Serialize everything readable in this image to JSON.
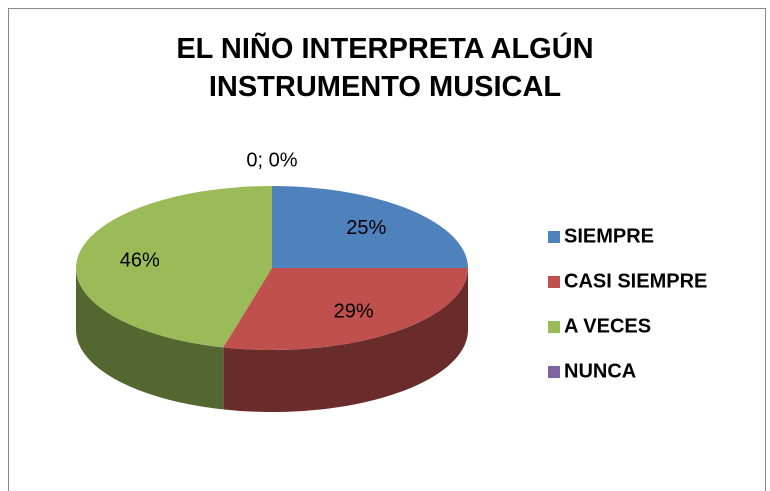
{
  "chart_data": {
    "type": "pie",
    "title": "EL NIÑO INTERPRETA  ALGÚN INSTRUMENTO MUSICAL",
    "categories": [
      "SIEMPRE",
      "CASI SIEMPRE",
      "A VECES",
      "NUNCA"
    ],
    "values": [
      25,
      29,
      46,
      0
    ],
    "value_labels": [
      "25%",
      "29%",
      "46%",
      "0; 0%"
    ],
    "colors": [
      "#4f81bd",
      "#c0504d",
      "#9bbb59",
      "#8064a2"
    ],
    "legend": "right"
  }
}
